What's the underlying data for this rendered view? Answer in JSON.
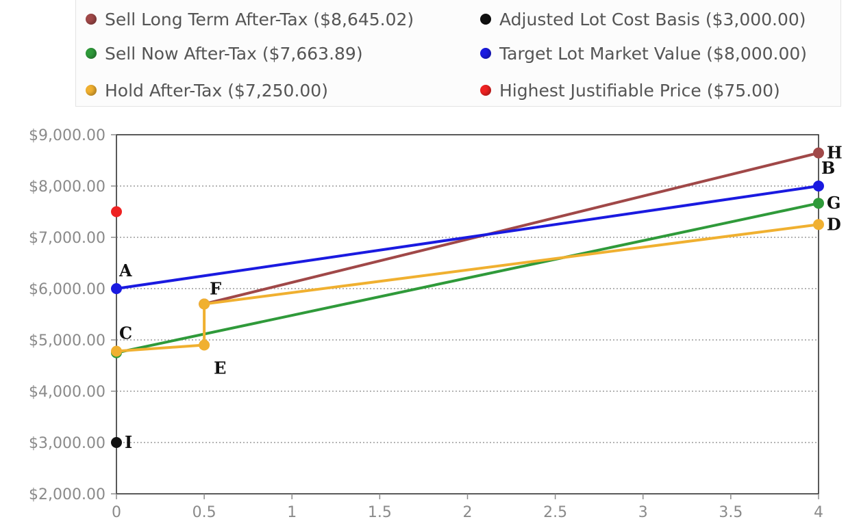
{
  "chart_data": {
    "type": "line",
    "xlim": [
      0,
      4
    ],
    "ylim": [
      2000,
      9000
    ],
    "x_ticks": [
      0,
      0.5,
      1,
      1.5,
      2,
      2.5,
      3,
      3.5,
      4
    ],
    "x_tick_labels": [
      "0",
      "0.5",
      "1",
      "1.5",
      "2",
      "2.5",
      "3",
      "3.5",
      "4"
    ],
    "y_ticks": [
      2000,
      3000,
      4000,
      5000,
      6000,
      7000,
      8000,
      9000
    ],
    "y_tick_labels": [
      "$2,000.00",
      "$3,000.00",
      "$4,000.00",
      "$5,000.00",
      "$6,000.00",
      "$7,000.00",
      "$8,000.00",
      "$9,000.00"
    ],
    "grid": "horizontal dotted",
    "legend_placement": "top",
    "series": [
      {
        "name": "Sell Long Term After-Tax ($8,645.02)",
        "color": "#a04848",
        "points": [
          [
            0.5,
            5700
          ],
          [
            4,
            8645.02
          ]
        ]
      },
      {
        "name": "Sell Now After-Tax ($7,663.89)",
        "color": "#2f9a3a",
        "points": [
          [
            0,
            4750
          ],
          [
            4,
            7663.89
          ]
        ]
      },
      {
        "name": "Hold After-Tax ($7,250.00)",
        "color": "#f0b030",
        "points": [
          [
            0,
            4780
          ],
          [
            0.5,
            4900
          ],
          [
            0.5,
            5700
          ],
          [
            4,
            7250
          ]
        ]
      },
      {
        "name": "Adjusted Lot Cost Basis ($3,000.00)",
        "color": "#111111",
        "points": [
          [
            0,
            3000
          ]
        ]
      },
      {
        "name": "Target Lot Market Value ($8,000.00)",
        "color": "#1a1ae0",
        "points": [
          [
            0,
            6000
          ],
          [
            4,
            8000
          ]
        ]
      },
      {
        "name": "Highest Justifiable Price ($75.00)",
        "color": "#ee2222",
        "points": [
          [
            0,
            7500
          ]
        ]
      }
    ],
    "point_labels": [
      {
        "label": "A",
        "x": 0,
        "y": 6000,
        "pos": "above-right"
      },
      {
        "label": "B",
        "x": 4,
        "y": 8000,
        "pos": "above-right"
      },
      {
        "label": "C",
        "x": 0,
        "y": 4780,
        "pos": "above-right"
      },
      {
        "label": "D",
        "x": 4,
        "y": 7250,
        "pos": "right"
      },
      {
        "label": "E",
        "x": 0.5,
        "y": 4900,
        "pos": "below"
      },
      {
        "label": "F",
        "x": 0.5,
        "y": 5700,
        "pos": "above"
      },
      {
        "label": "G",
        "x": 4,
        "y": 7663.89,
        "pos": "right"
      },
      {
        "label": "H",
        "x": 4,
        "y": 8645.02,
        "pos": "right"
      },
      {
        "label": "I",
        "x": 0,
        "y": 3000,
        "pos": "right"
      }
    ]
  }
}
